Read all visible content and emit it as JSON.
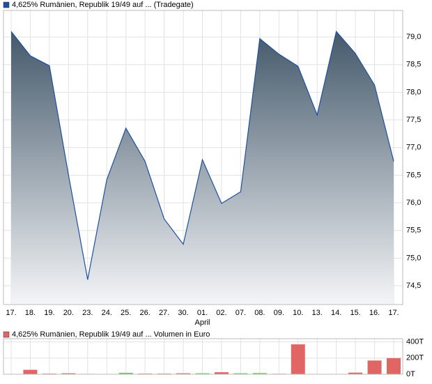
{
  "chart_data": [
    {
      "type": "area",
      "categories": [
        "17.",
        "18.",
        "19.",
        "20.",
        "23.",
        "24.",
        "25.",
        "26.",
        "27.",
        "30.",
        "01.",
        "02.",
        "07.",
        "08.",
        "09.",
        "10.",
        "13.",
        "14.",
        "15.",
        "16.",
        "17."
      ],
      "month_label": "April",
      "series": [
        {
          "name": "4,625% Rumänien, Republik 19/49 auf ... (Tradegate)",
          "color": "#1f4fa0",
          "values": [
            79.1,
            78.66,
            78.48,
            76.5,
            74.61,
            76.42,
            77.35,
            76.75,
            75.71,
            75.25,
            76.78,
            75.99,
            76.2,
            78.97,
            78.69,
            78.47,
            77.59,
            79.1,
            78.7,
            78.13,
            76.75
          ]
        }
      ],
      "ylim": [
        74.16,
        79.48
      ],
      "yticks": [
        {
          "value": 74.5,
          "label": "74,5"
        },
        {
          "value": 75,
          "label": "75,0"
        },
        {
          "value": 75.5,
          "label": "75,5"
        },
        {
          "value": 76,
          "label": "76,0"
        },
        {
          "value": 76.5,
          "label": "76,5"
        },
        {
          "value": 77,
          "label": "77,0"
        },
        {
          "value": 77.5,
          "label": "77,5"
        },
        {
          "value": 78,
          "label": "78,0"
        },
        {
          "value": 78.5,
          "label": "78,5"
        },
        {
          "value": 79,
          "label": "79,0"
        }
      ],
      "grid": true
    },
    {
      "type": "bar",
      "series": [
        {
          "name": "4,625% Rumänien, Republik 19/49 auf ... Volumen in Euro",
          "color": "#e06666",
          "values": [
            0,
            55000,
            8000,
            12000,
            5000,
            0,
            18000,
            8000,
            8000,
            12000,
            12000,
            25000,
            12000,
            15000,
            6000,
            370000,
            0,
            0,
            20000,
            170000,
            200000
          ],
          "colors": [
            "#e06666",
            "#e06666",
            "#e06666",
            "#e06666",
            "#e06666",
            "#e06666",
            "#66cc66",
            "#e06666",
            "#e06666",
            "#e06666",
            "#66cc66",
            "#e06666",
            "#66cc66",
            "#66cc66",
            "#e06666",
            "#e06666",
            "#e06666",
            "#e06666",
            "#e06666",
            "#e06666",
            "#e06666"
          ]
        }
      ],
      "ylim": [
        0,
        440000
      ],
      "yticks": [
        {
          "value": 0,
          "label": "0T"
        },
        {
          "value": 200000,
          "label": "200T"
        },
        {
          "value": 400000,
          "label": "400T"
        }
      ],
      "grid": true
    }
  ]
}
